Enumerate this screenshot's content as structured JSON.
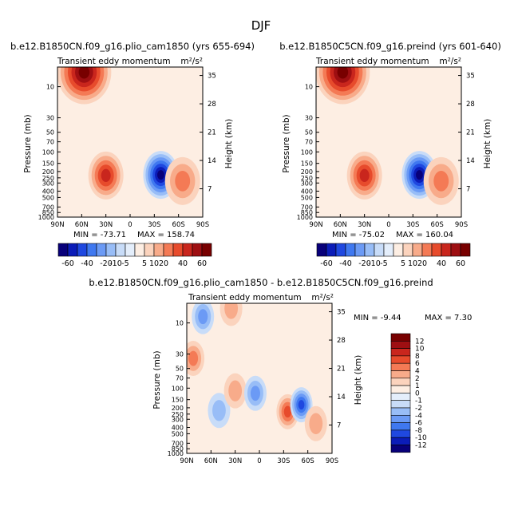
{
  "figure": {
    "title": "DJF"
  },
  "colors": {
    "main_scale": [
      "#08007a",
      "#0b1cb8",
      "#1f48e0",
      "#3f78f0",
      "#6b9af5",
      "#98bdf7",
      "#c8dcf8",
      "#e4eefb",
      "#fdeee3",
      "#fbd3bd",
      "#f8ab8a",
      "#f47a55",
      "#e74b2c",
      "#c9261d",
      "#9e0f12",
      "#780000"
    ],
    "diff_scale": [
      "#08007a",
      "#0b1cb8",
      "#1f48e0",
      "#3f78f0",
      "#6b9af5",
      "#98bdf7",
      "#c8dcf8",
      "#e4eefb",
      "#fdeee3",
      "#fbd3bd",
      "#f8ab8a",
      "#f47a55",
      "#e74b2c",
      "#c9261d",
      "#9e0f12",
      "#780000"
    ]
  },
  "chart_data": [
    {
      "type": "heatmap",
      "title": "b.e12.B1850CN.f09_g16.plio_cam1850 (yrs 655-694)",
      "subtitle_left": "Transient eddy momentum",
      "subtitle_right": "m²/s²",
      "ylabel": "Pressure (mb)",
      "ylabel_right": "Height (km)",
      "x_ticks": [
        "90N",
        "60N",
        "30N",
        "0",
        "30S",
        "60S",
        "90S"
      ],
      "x_values": [
        90,
        60,
        30,
        0,
        -30,
        -60,
        -90
      ],
      "y_ticks": [
        "10",
        "30",
        "50",
        "70",
        "100",
        "150",
        "200",
        "250",
        "300",
        "400",
        "500",
        "700",
        "850",
        "1000"
      ],
      "y_values": [
        10,
        30,
        50,
        70,
        100,
        150,
        200,
        250,
        300,
        400,
        500,
        700,
        850,
        1000
      ],
      "y_log": true,
      "ylim": [
        1000,
        5
      ],
      "height_ticks": [
        "35",
        "28",
        "21",
        "14",
        "7"
      ],
      "height_values": [
        35,
        28,
        21,
        14,
        7
      ],
      "min_label": "MIN = -73.71",
      "max_label": "MAX = 158.74",
      "min": -73.71,
      "max": 158.74,
      "features": [
        {
          "lat": 57,
          "p": 6,
          "value": 155
        },
        {
          "lat": 30,
          "p": 230,
          "value": 45
        },
        {
          "lat": -38,
          "p": 225,
          "value": -72
        },
        {
          "lat": -65,
          "p": 280,
          "value": 20
        }
      ]
    },
    {
      "type": "heatmap",
      "title": "b.e12.B1850C5CN.f09_g16.preind (yrs 601-640)",
      "subtitle_left": "Transient eddy momentum",
      "subtitle_right": "m²/s²",
      "ylabel": "Pressure (mb)",
      "ylabel_right": "Height (km)",
      "x_ticks": [
        "90N",
        "60N",
        "30N",
        "0",
        "30S",
        "60S",
        "90S"
      ],
      "x_values": [
        90,
        60,
        30,
        0,
        -30,
        -60,
        -90
      ],
      "y_ticks": [
        "10",
        "30",
        "50",
        "70",
        "100",
        "150",
        "200",
        "250",
        "300",
        "400",
        "500",
        "700",
        "850",
        "1000"
      ],
      "y_values": [
        10,
        30,
        50,
        70,
        100,
        150,
        200,
        250,
        300,
        400,
        500,
        700,
        850,
        1000
      ],
      "y_log": true,
      "ylim": [
        1000,
        5
      ],
      "height_ticks": [
        "35",
        "28",
        "21",
        "14",
        "7"
      ],
      "height_values": [
        35,
        28,
        21,
        14,
        7
      ],
      "min_label": "MIN = -75.02",
      "max_label": "MAX = 160.04",
      "min": -75.02,
      "max": 160.04,
      "features": [
        {
          "lat": 57,
          "p": 6,
          "value": 155
        },
        {
          "lat": 30,
          "p": 230,
          "value": 45
        },
        {
          "lat": -38,
          "p": 225,
          "value": -74
        },
        {
          "lat": -65,
          "p": 280,
          "value": 20
        }
      ]
    },
    {
      "type": "heatmap",
      "title": "b.e12.B1850CN.f09_g16.plio_cam1850 - b.e12.B1850C5CN.f09_g16.preind",
      "subtitle_left": "Transient eddy momentum",
      "subtitle_right": "m²/s²",
      "ylabel": "Pressure (mb)",
      "ylabel_right": "Height (km)",
      "x_ticks": [
        "90N",
        "60N",
        "30N",
        "0",
        "30S",
        "60S",
        "90S"
      ],
      "x_values": [
        90,
        60,
        30,
        0,
        -30,
        -60,
        -90
      ],
      "y_ticks": [
        "10",
        "30",
        "50",
        "70",
        "100",
        "150",
        "200",
        "250",
        "300",
        "400",
        "500",
        "700",
        "850",
        "1000"
      ],
      "y_values": [
        10,
        30,
        50,
        70,
        100,
        150,
        200,
        250,
        300,
        400,
        500,
        700,
        850,
        1000
      ],
      "y_log": true,
      "ylim": [
        1000,
        5
      ],
      "height_ticks": [
        "35",
        "28",
        "21",
        "14",
        "7"
      ],
      "height_values": [
        35,
        28,
        21,
        14,
        7
      ],
      "min_label": "MIN = -9.44",
      "max_label": "MAX =   7.30",
      "min": -9.44,
      "max": 7.3,
      "features": [
        {
          "lat": 70,
          "p": 8,
          "value": -5
        },
        {
          "lat": 82,
          "p": 35,
          "value": 5
        },
        {
          "lat": 35,
          "p": 6,
          "value": 3
        },
        {
          "lat": 50,
          "p": 220,
          "value": -3
        },
        {
          "lat": 30,
          "p": 110,
          "value": 2
        },
        {
          "lat": 5,
          "p": 120,
          "value": -4
        },
        {
          "lat": -35,
          "p": 230,
          "value": 6
        },
        {
          "lat": -52,
          "p": 180,
          "value": -9
        },
        {
          "lat": -70,
          "p": 350,
          "value": 3
        }
      ]
    }
  ],
  "colorbar_main": {
    "labels": [
      "-60",
      "-40",
      "-20",
      "-10",
      "-5",
      "5",
      "10",
      "20",
      "40",
      "60"
    ]
  },
  "colorbar_diff": {
    "labels": [
      "12",
      "10",
      "8",
      "6",
      "4",
      "2",
      "1",
      "0",
      "-1",
      "-2",
      "-4",
      "-6",
      "-8",
      "-10",
      "-12"
    ]
  }
}
